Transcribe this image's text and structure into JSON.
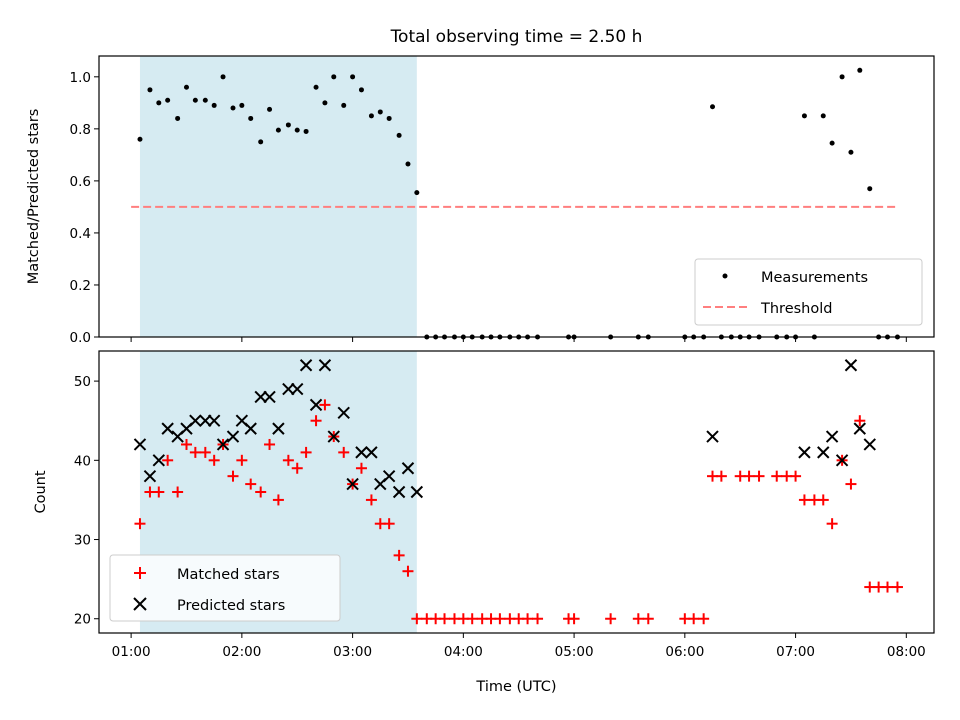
{
  "chart_data": {
    "type": "scatter",
    "title": "Total observing time = 2.50 h",
    "xlabel": "Time (UTC)",
    "x_ticks": [
      {
        "hour": 1,
        "label": "01:00"
      },
      {
        "hour": 2,
        "label": "02:00"
      },
      {
        "hour": 3,
        "label": "03:00"
      },
      {
        "hour": 4,
        "label": "04:00"
      },
      {
        "hour": 5,
        "label": "05:00"
      },
      {
        "hour": 6,
        "label": "06:00"
      },
      {
        "hour": 7,
        "label": "07:00"
      },
      {
        "hour": 8,
        "label": "08:00"
      }
    ],
    "xlim_hours": [
      0.71,
      8.25
    ],
    "shaded_interval_hours": [
      1.08,
      3.58
    ],
    "shade_color": "#add8e6",
    "panels": [
      {
        "ylabel": "Matched/Predicted stars",
        "ylim": [
          0,
          1.08
        ],
        "yticks": [
          {
            "v": 0.0,
            "label": "0.0"
          },
          {
            "v": 0.2,
            "label": "0.2"
          },
          {
            "v": 0.4,
            "label": "0.4"
          },
          {
            "v": 0.6,
            "label": "0.6"
          },
          {
            "v": 0.8,
            "label": "0.8"
          },
          {
            "v": 1.0,
            "label": "1.0"
          }
        ],
        "legend_position": "lower-right",
        "series": [
          {
            "name": "Measurements",
            "marker": "dot",
            "color": "#000000",
            "points": [
              [
                1.08,
                0.76
              ],
              [
                1.17,
                0.95
              ],
              [
                1.25,
                0.9
              ],
              [
                1.33,
                0.91
              ],
              [
                1.42,
                0.84
              ],
              [
                1.5,
                0.96
              ],
              [
                1.58,
                0.91
              ],
              [
                1.67,
                0.91
              ],
              [
                1.75,
                0.89
              ],
              [
                1.83,
                1.0
              ],
              [
                1.92,
                0.88
              ],
              [
                2.0,
                0.89
              ],
              [
                2.08,
                0.84
              ],
              [
                2.17,
                0.75
              ],
              [
                2.25,
                0.875
              ],
              [
                2.33,
                0.795
              ],
              [
                2.42,
                0.815
              ],
              [
                2.5,
                0.795
              ],
              [
                2.58,
                0.79
              ],
              [
                2.67,
                0.96
              ],
              [
                2.75,
                0.9
              ],
              [
                2.83,
                1.0
              ],
              [
                2.92,
                0.89
              ],
              [
                3.0,
                1.0
              ],
              [
                3.08,
                0.95
              ],
              [
                3.17,
                0.85
              ],
              [
                3.25,
                0.865
              ],
              [
                3.33,
                0.84
              ],
              [
                3.42,
                0.775
              ],
              [
                3.5,
                0.665
              ],
              [
                3.58,
                0.555
              ],
              [
                3.67,
                0
              ],
              [
                3.75,
                0
              ],
              [
                3.83,
                0
              ],
              [
                3.92,
                0
              ],
              [
                4.0,
                0
              ],
              [
                4.08,
                0
              ],
              [
                4.17,
                0
              ],
              [
                4.25,
                0
              ],
              [
                4.33,
                0
              ],
              [
                4.42,
                0
              ],
              [
                4.5,
                0
              ],
              [
                4.58,
                0
              ],
              [
                4.67,
                0
              ],
              [
                4.95,
                0
              ],
              [
                5.0,
                0
              ],
              [
                5.33,
                0
              ],
              [
                5.58,
                0
              ],
              [
                5.67,
                0
              ],
              [
                6.0,
                0
              ],
              [
                6.08,
                0
              ],
              [
                6.17,
                0
              ],
              [
                6.25,
                0.885
              ],
              [
                6.33,
                0
              ],
              [
                6.42,
                0
              ],
              [
                6.5,
                0
              ],
              [
                6.58,
                0
              ],
              [
                6.67,
                0
              ],
              [
                6.83,
                0
              ],
              [
                6.92,
                0
              ],
              [
                7.0,
                0
              ],
              [
                7.08,
                0.85
              ],
              [
                7.17,
                0
              ],
              [
                7.25,
                0.85
              ],
              [
                7.33,
                0.745
              ],
              [
                7.42,
                1.0
              ],
              [
                7.5,
                0.71
              ],
              [
                7.58,
                1.025
              ],
              [
                7.67,
                0.57
              ],
              [
                7.75,
                0
              ],
              [
                7.83,
                0
              ],
              [
                7.92,
                0
              ]
            ]
          },
          {
            "name": "Threshold",
            "line": "dashed",
            "color": "#ff7f7f",
            "x": [
              1.0,
              7.92
            ],
            "y": [
              0.5,
              0.5
            ]
          }
        ]
      },
      {
        "ylabel": "Count",
        "ylim": [
          18.2,
          53.8
        ],
        "yticks": [
          {
            "v": 20,
            "label": "20"
          },
          {
            "v": 30,
            "label": "30"
          },
          {
            "v": 40,
            "label": "40"
          },
          {
            "v": 50,
            "label": "50"
          }
        ],
        "legend_position": "lower-left",
        "series": [
          {
            "name": "Matched stars",
            "marker": "plus",
            "color": "#ff0000",
            "points": [
              [
                1.08,
                32
              ],
              [
                1.17,
                36
              ],
              [
                1.25,
                36
              ],
              [
                1.33,
                40
              ],
              [
                1.42,
                36
              ],
              [
                1.5,
                42
              ],
              [
                1.58,
                41
              ],
              [
                1.67,
                41
              ],
              [
                1.75,
                40
              ],
              [
                1.83,
                42
              ],
              [
                1.92,
                38
              ],
              [
                2.0,
                40
              ],
              [
                2.08,
                37
              ],
              [
                2.17,
                36
              ],
              [
                2.25,
                42
              ],
              [
                2.33,
                35
              ],
              [
                2.42,
                40
              ],
              [
                2.5,
                39
              ],
              [
                2.58,
                41
              ],
              [
                2.67,
                45
              ],
              [
                2.75,
                47
              ],
              [
                2.83,
                43
              ],
              [
                2.92,
                41
              ],
              [
                3.0,
                37
              ],
              [
                3.08,
                39
              ],
              [
                3.17,
                35
              ],
              [
                3.25,
                32
              ],
              [
                3.33,
                32
              ],
              [
                3.42,
                28
              ],
              [
                3.5,
                26
              ],
              [
                3.58,
                20
              ],
              [
                3.67,
                20
              ],
              [
                3.75,
                20
              ],
              [
                3.83,
                20
              ],
              [
                3.92,
                20
              ],
              [
                4.0,
                20
              ],
              [
                4.08,
                20
              ],
              [
                4.17,
                20
              ],
              [
                4.25,
                20
              ],
              [
                4.33,
                20
              ],
              [
                4.42,
                20
              ],
              [
                4.5,
                20
              ],
              [
                4.58,
                20
              ],
              [
                4.67,
                20
              ],
              [
                4.95,
                20
              ],
              [
                5.0,
                20
              ],
              [
                5.33,
                20
              ],
              [
                5.58,
                20
              ],
              [
                5.67,
                20
              ],
              [
                6.0,
                20
              ],
              [
                6.08,
                20
              ],
              [
                6.17,
                20
              ],
              [
                6.25,
                38
              ],
              [
                6.33,
                38
              ],
              [
                6.5,
                38
              ],
              [
                6.58,
                38
              ],
              [
                6.67,
                38
              ],
              [
                6.83,
                38
              ],
              [
                6.92,
                38
              ],
              [
                7.0,
                38
              ],
              [
                7.08,
                35
              ],
              [
                7.17,
                35
              ],
              [
                7.25,
                35
              ],
              [
                7.33,
                32
              ],
              [
                7.42,
                40
              ],
              [
                7.5,
                37
              ],
              [
                7.58,
                45
              ],
              [
                7.67,
                24
              ],
              [
                7.75,
                24
              ],
              [
                7.83,
                24
              ],
              [
                7.92,
                24
              ]
            ]
          },
          {
            "name": "Predicted stars",
            "marker": "x",
            "color": "#000000",
            "points": [
              [
                1.08,
                42
              ],
              [
                1.17,
                38
              ],
              [
                1.25,
                40
              ],
              [
                1.33,
                44
              ],
              [
                1.42,
                43
              ],
              [
                1.5,
                44
              ],
              [
                1.58,
                45
              ],
              [
                1.67,
                45
              ],
              [
                1.75,
                45
              ],
              [
                1.83,
                42
              ],
              [
                1.92,
                43
              ],
              [
                2.0,
                45
              ],
              [
                2.08,
                44
              ],
              [
                2.17,
                48
              ],
              [
                2.25,
                48
              ],
              [
                2.33,
                44
              ],
              [
                2.42,
                49
              ],
              [
                2.5,
                49
              ],
              [
                2.58,
                52
              ],
              [
                2.67,
                47
              ],
              [
                2.75,
                52
              ],
              [
                2.83,
                43
              ],
              [
                2.92,
                46
              ],
              [
                3.0,
                37
              ],
              [
                3.08,
                41
              ],
              [
                3.17,
                41
              ],
              [
                3.25,
                37
              ],
              [
                3.33,
                38
              ],
              [
                3.42,
                36
              ],
              [
                3.5,
                39
              ],
              [
                3.58,
                36
              ],
              [
                6.25,
                43
              ],
              [
                7.08,
                41
              ],
              [
                7.25,
                41
              ],
              [
                7.33,
                43
              ],
              [
                7.42,
                40
              ],
              [
                7.5,
                52
              ],
              [
                7.58,
                44
              ],
              [
                7.67,
                42
              ]
            ]
          }
        ]
      }
    ]
  }
}
